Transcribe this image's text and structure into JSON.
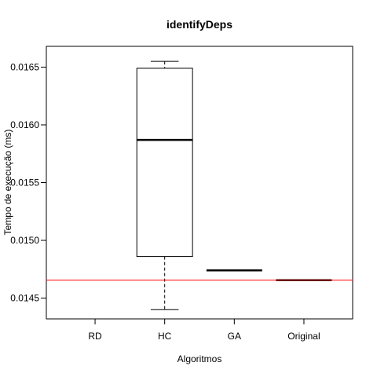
{
  "chart_data": {
    "type": "boxplot",
    "title": "identifyDeps",
    "xlabel": "Algoritmos",
    "ylabel": "Tempo de execução (ms)",
    "categories": [
      "RD",
      "HC",
      "GA",
      "Original"
    ],
    "ylim": [
      0.01432,
      0.01668
    ],
    "yticks": [
      0.0145,
      0.015,
      0.0155,
      0.016,
      0.0165
    ],
    "ytick_labels": [
      "0.0145",
      "0.0150",
      "0.0155",
      "0.0160",
      "0.0165"
    ],
    "boxes": [
      {
        "category": "RD",
        "min": null,
        "q1": null,
        "median": null,
        "q3": null,
        "max": null
      },
      {
        "category": "HC",
        "min": 0.0144,
        "q1": 0.01486,
        "median": 0.01587,
        "q3": 0.01649,
        "max": 0.01655
      },
      {
        "category": "GA",
        "min": 0.01474,
        "q1": 0.01474,
        "median": 0.01474,
        "q3": 0.01474,
        "max": 0.01474
      },
      {
        "category": "Original",
        "min": 0.014655,
        "q1": 0.014655,
        "median": 0.014655,
        "q3": 0.014655,
        "max": 0.014655
      }
    ],
    "reference_line": {
      "value": 0.014655,
      "color": "#ff0000"
    },
    "grid": false,
    "colors": {
      "box": "#000000",
      "reference": "#ff0000"
    }
  }
}
